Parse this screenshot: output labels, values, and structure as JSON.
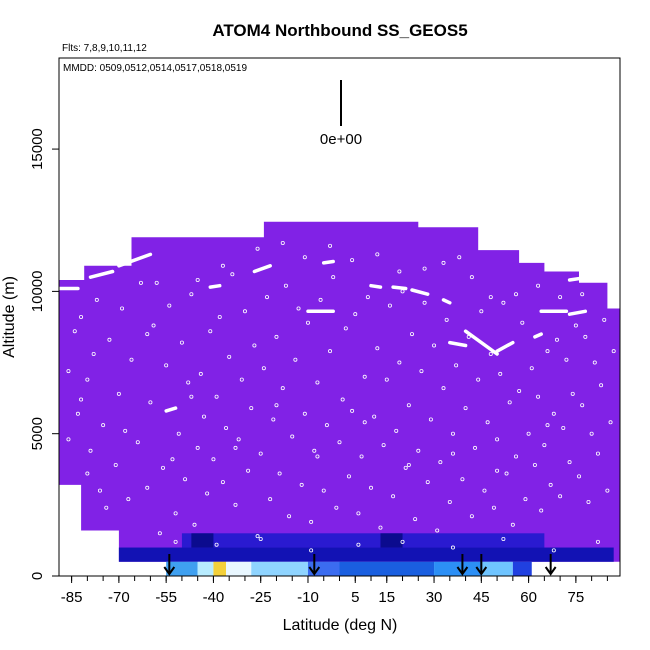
{
  "chart_data": {
    "type": "heatmap",
    "title": "ATOM4 Northbound SS_GEOS5",
    "subtitle_flights": "Flts: 7,8,9,10,11,12",
    "subtitle_dates": "MMDD: 0509,0512,0514,0517,0518,0519",
    "xlabel": "Latitude (deg N)",
    "ylabel": "Altitude (m)",
    "xlim": [
      -89,
      89
    ],
    "ylim": [
      0,
      18200
    ],
    "x_ticks": [
      -85,
      -70,
      -55,
      -40,
      -25,
      -10,
      5,
      15,
      30,
      45,
      60,
      75
    ],
    "x_tick_labels": [
      "-85",
      "-70",
      "-55",
      "-40",
      "-25",
      "-10",
      "5",
      "15",
      "30",
      "45",
      "60",
      "75"
    ],
    "y_ticks": [
      0,
      5000,
      10000,
      15000
    ],
    "y_tick_labels": [
      "0",
      "5000",
      "10000",
      "15000"
    ],
    "scale_label": "0e+00",
    "background_color": "#8122e6",
    "curtain_top": [
      {
        "lat": -89,
        "alt": 0
      },
      {
        "lat": -89,
        "alt": 10400
      },
      {
        "lat": -81,
        "alt": 10400
      },
      {
        "lat": -81,
        "alt": 10900
      },
      {
        "lat": -66,
        "alt": 10900
      },
      {
        "lat": -66,
        "alt": 11900
      },
      {
        "lat": -24,
        "alt": 11900
      },
      {
        "lat": -24,
        "alt": 12450
      },
      {
        "lat": 25,
        "alt": 12450
      },
      {
        "lat": 25,
        "alt": 12250
      },
      {
        "lat": 44,
        "alt": 12250
      },
      {
        "lat": 44,
        "alt": 11450
      },
      {
        "lat": 57,
        "alt": 11450
      },
      {
        "lat": 57,
        "alt": 11000
      },
      {
        "lat": 65,
        "alt": 11000
      },
      {
        "lat": 65,
        "alt": 10700
      },
      {
        "lat": 76,
        "alt": 10700
      },
      {
        "lat": 76,
        "alt": 10300
      },
      {
        "lat": 85,
        "alt": 10300
      },
      {
        "lat": 85,
        "alt": 9400
      },
      {
        "lat": 89,
        "alt": 9400
      },
      {
        "lat": 89,
        "alt": 500
      },
      {
        "lat": -70,
        "alt": 500
      },
      {
        "lat": -70,
        "alt": 1600
      },
      {
        "lat": -82,
        "alt": 1600
      },
      {
        "lat": -82,
        "alt": 3200
      },
      {
        "lat": -89,
        "alt": 3200
      }
    ],
    "near_surface_bands": [
      {
        "lat_start": -70,
        "lat_end": 87,
        "alt_start": 500,
        "alt_end": 1000,
        "color": "#1212b4"
      },
      {
        "lat_start": -50,
        "lat_end": 65,
        "alt_start": 1000,
        "alt_end": 1500,
        "color": "#2a1ad0"
      },
      {
        "lat_start": -47,
        "lat_end": -40,
        "alt_start": 1000,
        "alt_end": 1500,
        "color": "#0b0b8e"
      },
      {
        "lat_start": 13,
        "lat_end": 20,
        "alt_start": 1000,
        "alt_end": 1500,
        "color": "#0b0b8e"
      },
      {
        "lat_start": -55,
        "lat_end": -45,
        "alt_start": 0,
        "alt_end": 500,
        "color": "#3fa0f0"
      },
      {
        "lat_start": -45,
        "lat_end": -40,
        "alt_start": 0,
        "alt_end": 500,
        "color": "#b8ecff"
      },
      {
        "lat_start": -40,
        "lat_end": -36,
        "alt_start": 0,
        "alt_end": 500,
        "color": "#f3d03a"
      },
      {
        "lat_start": -36,
        "lat_end": -28,
        "alt_start": 0,
        "alt_end": 500,
        "color": "#e9f7ff"
      },
      {
        "lat_start": -28,
        "lat_end": -10,
        "alt_start": 0,
        "alt_end": 500,
        "color": "#8fd4ff"
      },
      {
        "lat_start": -10,
        "lat_end": 0,
        "alt_start": 0,
        "alt_end": 500,
        "color": "#3b6cf0"
      },
      {
        "lat_start": 0,
        "lat_end": 30,
        "alt_start": 0,
        "alt_end": 500,
        "color": "#1a5fe0"
      },
      {
        "lat_start": 30,
        "lat_end": 45,
        "alt_start": 0,
        "alt_end": 500,
        "color": "#2c8ff5"
      },
      {
        "lat_start": 45,
        "lat_end": 55,
        "alt_start": 0,
        "alt_end": 500,
        "color": "#6fc4ff"
      },
      {
        "lat_start": 55,
        "lat_end": 61,
        "alt_start": 0,
        "alt_end": 500,
        "color": "#2040e0"
      }
    ],
    "flight_tracks": [
      [
        [
          -89,
          10100
        ],
        [
          -83,
          10100
        ]
      ],
      [
        [
          -79,
          10500
        ],
        [
          -72,
          10700
        ]
      ],
      [
        [
          -70,
          10900
        ],
        [
          -60,
          11300
        ]
      ],
      [
        [
          -27,
          10700
        ],
        [
          -22,
          10900
        ]
      ],
      [
        [
          -5,
          11000
        ],
        [
          -2,
          11050
        ]
      ],
      [
        [
          -41,
          10150
        ],
        [
          -38,
          10200
        ]
      ],
      [
        [
          -55,
          5800
        ],
        [
          -52,
          5900
        ]
      ],
      [
        [
          -10,
          9300
        ],
        [
          -2,
          9300
        ]
      ],
      [
        [
          10,
          10200
        ],
        [
          13,
          10150
        ]
      ],
      [
        [
          17,
          10150
        ],
        [
          21,
          10100
        ]
      ],
      [
        [
          23,
          10050
        ],
        [
          28,
          9900
        ]
      ],
      [
        [
          33,
          9700
        ],
        [
          35,
          9600
        ]
      ],
      [
        [
          40,
          8600
        ],
        [
          50,
          7800
        ]
      ],
      [
        [
          50,
          7900
        ],
        [
          55,
          8200
        ]
      ],
      [
        [
          62,
          8400
        ],
        [
          64,
          8500
        ]
      ],
      [
        [
          64,
          9300
        ],
        [
          72,
          9300
        ]
      ],
      [
        [
          73,
          9200
        ],
        [
          78,
          9300
        ]
      ],
      [
        [
          35,
          12700
        ],
        [
          35,
          12900
        ]
      ],
      [
        [
          -9,
          12600
        ],
        [
          -6,
          12600
        ]
      ],
      [
        [
          35,
          8200
        ],
        [
          40,
          8100
        ]
      ],
      [
        [
          70,
          10800
        ],
        [
          79,
          10800
        ]
      ],
      [
        [
          73,
          10400
        ],
        [
          79,
          10500
        ]
      ]
    ],
    "sample_marks": [
      [
        -86,
        4800
      ],
      [
        -86,
        7200
      ],
      [
        -84,
        8600
      ],
      [
        -82,
        6200
      ],
      [
        -82,
        9100
      ],
      [
        -80,
        3600
      ],
      [
        -80,
        6900
      ],
      [
        -79,
        4400
      ],
      [
        -78,
        7800
      ],
      [
        -77,
        9700
      ],
      [
        -75,
        5300
      ],
      [
        -74,
        2400
      ],
      [
        -73,
        8300
      ],
      [
        -71,
        3900
      ],
      [
        -70,
        6400
      ],
      [
        -69,
        9400
      ],
      [
        -67,
        2700
      ],
      [
        -66,
        7600
      ],
      [
        -64,
        4700
      ],
      [
        -63,
        10300
      ],
      [
        -61,
        3100
      ],
      [
        -60,
        6100
      ],
      [
        -59,
        8800
      ],
      [
        -57,
        1500
      ],
      [
        -56,
        3800
      ],
      [
        -55,
        7400
      ],
      [
        -54,
        9500
      ],
      [
        -52,
        2200
      ],
      [
        -51,
        5000
      ],
      [
        -50,
        8200
      ],
      [
        -49,
        3400
      ],
      [
        -48,
        6800
      ],
      [
        -47,
        9900
      ],
      [
        -46,
        1800
      ],
      [
        -45,
        4500
      ],
      [
        -44,
        7100
      ],
      [
        -43,
        5600
      ],
      [
        -42,
        2900
      ],
      [
        -41,
        8600
      ],
      [
        -40,
        4100
      ],
      [
        -39,
        6300
      ],
      [
        -38,
        9100
      ],
      [
        -37,
        3300
      ],
      [
        -36,
        5200
      ],
      [
        -35,
        7700
      ],
      [
        -34,
        10600
      ],
      [
        -33,
        2500
      ],
      [
        -32,
        4800
      ],
      [
        -31,
        6900
      ],
      [
        -30,
        9300
      ],
      [
        -29,
        3700
      ],
      [
        -28,
        5900
      ],
      [
        -27,
        8100
      ],
      [
        -26,
        1400
      ],
      [
        -25,
        4300
      ],
      [
        -24,
        7300
      ],
      [
        -23,
        9800
      ],
      [
        -22,
        2700
      ],
      [
        -21,
        5500
      ],
      [
        -20,
        8400
      ],
      [
        -19,
        3600
      ],
      [
        -18,
        6600
      ],
      [
        -17,
        10200
      ],
      [
        -16,
        2100
      ],
      [
        -15,
        4900
      ],
      [
        -14,
        7600
      ],
      [
        -13,
        9400
      ],
      [
        -12,
        3200
      ],
      [
        -11,
        5700
      ],
      [
        -10,
        8900
      ],
      [
        -9,
        1900
      ],
      [
        -8,
        4400
      ],
      [
        -7,
        6800
      ],
      [
        -6,
        9700
      ],
      [
        -5,
        3000
      ],
      [
        -4,
        5300
      ],
      [
        -3,
        7900
      ],
      [
        -2,
        10500
      ],
      [
        -1,
        2400
      ],
      [
        0,
        4700
      ],
      [
        1,
        6200
      ],
      [
        2,
        8700
      ],
      [
        3,
        3500
      ],
      [
        4,
        5800
      ],
      [
        5,
        9200
      ],
      [
        6,
        2200
      ],
      [
        7,
        4200
      ],
      [
        8,
        7000
      ],
      [
        9,
        9800
      ],
      [
        10,
        3100
      ],
      [
        11,
        5600
      ],
      [
        12,
        8000
      ],
      [
        13,
        1700
      ],
      [
        14,
        4600
      ],
      [
        15,
        6900
      ],
      [
        16,
        9500
      ],
      [
        17,
        2800
      ],
      [
        18,
        5100
      ],
      [
        19,
        7500
      ],
      [
        20,
        10000
      ],
      [
        21,
        3800
      ],
      [
        22,
        6000
      ],
      [
        23,
        8500
      ],
      [
        24,
        2000
      ],
      [
        25,
        4400
      ],
      [
        26,
        7200
      ],
      [
        27,
        9600
      ],
      [
        28,
        3300
      ],
      [
        29,
        5500
      ],
      [
        30,
        8100
      ],
      [
        31,
        1600
      ],
      [
        32,
        4000
      ],
      [
        33,
        6600
      ],
      [
        34,
        9000
      ],
      [
        35,
        2600
      ],
      [
        36,
        5000
      ],
      [
        37,
        7400
      ],
      [
        38,
        11200
      ],
      [
        39,
        3400
      ],
      [
        40,
        5900
      ],
      [
        41,
        8400
      ],
      [
        42,
        2100
      ],
      [
        43,
        4500
      ],
      [
        44,
        6900
      ],
      [
        45,
        9300
      ],
      [
        46,
        3000
      ],
      [
        47,
        5400
      ],
      [
        48,
        7800
      ],
      [
        49,
        2400
      ],
      [
        50,
        4800
      ],
      [
        51,
        7100
      ],
      [
        52,
        9600
      ],
      [
        53,
        3600
      ],
      [
        54,
        6100
      ],
      [
        55,
        1800
      ],
      [
        56,
        4200
      ],
      [
        57,
        6500
      ],
      [
        58,
        8900
      ],
      [
        59,
        2700
      ],
      [
        60,
        5000
      ],
      [
        61,
        7300
      ],
      [
        62,
        3900
      ],
      [
        63,
        6300
      ],
      [
        64,
        2300
      ],
      [
        65,
        4600
      ],
      [
        66,
        7900
      ],
      [
        67,
        3200
      ],
      [
        68,
        5700
      ],
      [
        69,
        8300
      ],
      [
        70,
        2800
      ],
      [
        71,
        5200
      ],
      [
        72,
        7600
      ],
      [
        73,
        4000
      ],
      [
        74,
        6400
      ],
      [
        75,
        8800
      ],
      [
        76,
        3500
      ],
      [
        77,
        6000
      ],
      [
        78,
        8400
      ],
      [
        79,
        2600
      ],
      [
        80,
        5000
      ],
      [
        81,
        7500
      ],
      [
        82,
        4300
      ],
      [
        83,
        6700
      ],
      [
        84,
        9000
      ],
      [
        85,
        3000
      ],
      [
        86,
        5400
      ],
      [
        87,
        7900
      ],
      [
        -83,
        5700
      ],
      [
        -76,
        3000
      ],
      [
        -68,
        5100
      ],
      [
        -58,
        10300
      ],
      [
        -53,
        4100
      ],
      [
        -45,
        10400
      ],
      [
        -37,
        10900
      ],
      [
        -26,
        11500
      ],
      [
        -18,
        11700
      ],
      [
        -11,
        11200
      ],
      [
        -3,
        11600
      ],
      [
        4,
        11100
      ],
      [
        12,
        11300
      ],
      [
        19,
        10700
      ],
      [
        27,
        10800
      ],
      [
        33,
        11000
      ],
      [
        42,
        10500
      ],
      [
        48,
        9800
      ],
      [
        56,
        9900
      ],
      [
        63,
        10200
      ],
      [
        70,
        9800
      ],
      [
        77,
        9900
      ],
      [
        -61,
        8500
      ],
      [
        -47,
        6300
      ],
      [
        -33,
        4500
      ],
      [
        -20,
        6000
      ],
      [
        -7,
        4200
      ],
      [
        8,
        5400
      ],
      [
        22,
        3900
      ],
      [
        36,
        4300
      ],
      [
        50,
        3700
      ],
      [
        66,
        5300
      ],
      [
        -52,
        1200
      ],
      [
        -39,
        1100
      ],
      [
        -25,
        1300
      ],
      [
        -9,
        900
      ],
      [
        6,
        1100
      ],
      [
        20,
        1200
      ],
      [
        36,
        1000
      ],
      [
        52,
        1300
      ],
      [
        68,
        900
      ],
      [
        82,
        1200
      ]
    ],
    "arrows_lat": [
      -54,
      -8,
      39,
      45,
      67
    ],
    "scale_bar_value": 0
  }
}
